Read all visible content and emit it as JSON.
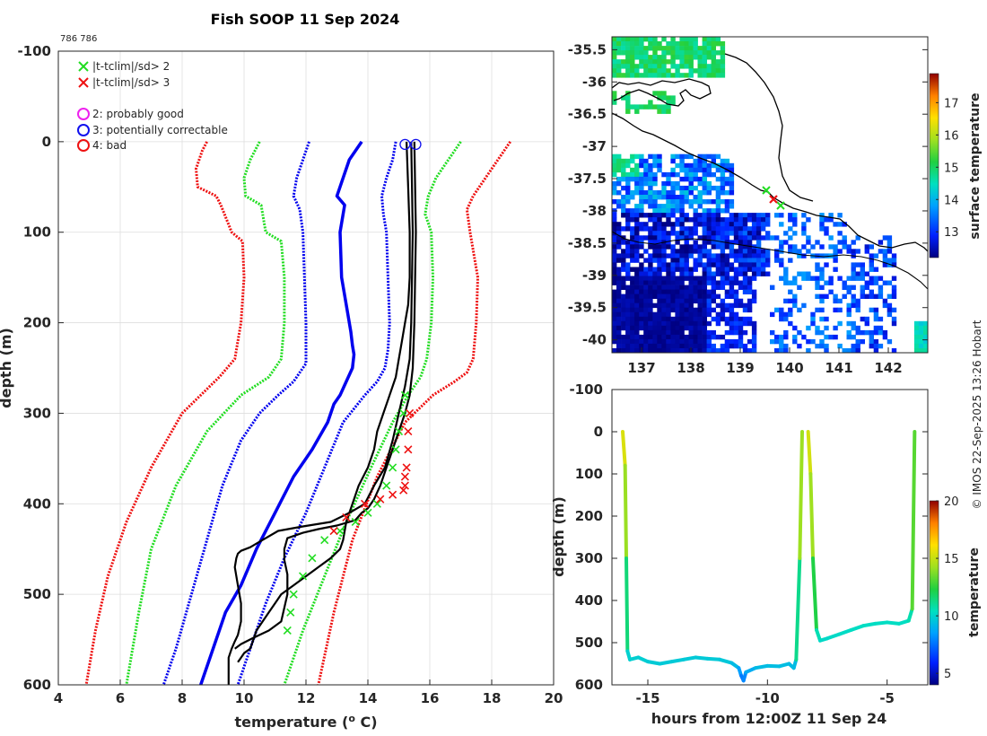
{
  "figure": {
    "title": "Fish SOOP 11 Sep 2024",
    "id_text": "786 786",
    "credit": "© IMOS 22-Sep-2025 13:26 Hobart"
  },
  "chart_data": [
    {
      "type": "line",
      "panel": "profile",
      "xlabel": "temperature (° C)",
      "xlabel_main": "temperature (",
      "xlabel_super": "o",
      "xlabel_tail": " C)",
      "ylabel": "depth (m)",
      "xlim": [
        4,
        20
      ],
      "ylim": [
        -100,
        600
      ],
      "y_reversed": true,
      "grid": true,
      "xticks": [
        4,
        6,
        8,
        10,
        12,
        14,
        16,
        18,
        20
      ],
      "yticks": [
        -100,
        0,
        100,
        200,
        300,
        400,
        500,
        600
      ],
      "legend": {
        "position": "top-left",
        "entries": [
          {
            "symbol": "x",
            "color": "#22dd22",
            "label": "|t-tclim|/sd> 2"
          },
          {
            "symbol": "x",
            "color": "#ee1111",
            "label": "|t-tclim|/sd> 3"
          },
          {
            "symbol": "o",
            "color": "#ee22ee",
            "label": "2: probably good"
          },
          {
            "symbol": "o",
            "color": "#1111ee",
            "label": "3: potentially correctable"
          },
          {
            "symbol": "o",
            "color": "#ee1111",
            "label": "4: bad"
          }
        ]
      },
      "series": [
        {
          "name": "climatology mean",
          "color": "#0000ee",
          "style": "solid",
          "x": [
            13.8,
            13.4,
            13.2,
            13.0,
            13.25,
            13.1,
            13.15,
            13.35,
            13.45,
            13.5,
            13.55,
            13.5,
            13.3,
            13.1,
            12.9,
            12.7,
            12.2,
            11.6,
            11.0,
            10.4,
            9.9,
            9.4,
            9.0,
            8.6
          ],
          "y": [
            0,
            20,
            40,
            60,
            70,
            100,
            150,
            190,
            210,
            225,
            235,
            250,
            265,
            280,
            290,
            310,
            340,
            370,
            410,
            450,
            490,
            520,
            560,
            600
          ]
        },
        {
          "name": "mean - 1 sd",
          "color": "#0000ee",
          "style": "dotted",
          "x": [
            12.1,
            11.9,
            11.7,
            11.6,
            11.8,
            11.9,
            11.95,
            12.0,
            12.0,
            12.0,
            11.8,
            11.6,
            11.1,
            10.5,
            9.9,
            9.3,
            8.8,
            8.3,
            7.8,
            7.4
          ],
          "y": [
            0,
            20,
            40,
            60,
            75,
            100,
            150,
            200,
            230,
            245,
            255,
            265,
            280,
            300,
            330,
            380,
            440,
            500,
            560,
            600
          ]
        },
        {
          "name": "mean + 1 sd",
          "color": "#0000ee",
          "style": "dotted",
          "x": [
            14.9,
            14.8,
            14.6,
            14.45,
            14.5,
            14.6,
            14.65,
            14.7,
            14.65,
            14.55,
            14.3,
            13.9,
            13.2,
            12.6,
            12.0,
            11.3,
            10.7,
            10.2,
            9.8
          ],
          "y": [
            0,
            20,
            40,
            60,
            80,
            100,
            150,
            200,
            230,
            250,
            265,
            280,
            310,
            360,
            410,
            460,
            510,
            560,
            600
          ]
        },
        {
          "name": "mean - 2 sd",
          "color": "#22dd22",
          "style": "dotted",
          "x": [
            10.5,
            10.2,
            10.0,
            10.05,
            10.55,
            10.7,
            11.2,
            11.3,
            11.3,
            11.2,
            10.8,
            9.9,
            8.8,
            7.8,
            7.0,
            6.6,
            6.2
          ],
          "y": [
            0,
            20,
            40,
            60,
            70,
            100,
            110,
            150,
            200,
            240,
            260,
            280,
            320,
            380,
            450,
            520,
            600
          ]
        },
        {
          "name": "mean + 2 sd",
          "color": "#22dd22",
          "style": "dotted",
          "x": [
            17.0,
            16.6,
            16.2,
            15.95,
            15.85,
            16.05,
            16.1,
            16.05,
            15.9,
            15.7,
            15.3,
            14.8,
            14.1,
            13.3,
            12.6,
            11.9,
            11.3
          ],
          "y": [
            0,
            20,
            40,
            60,
            80,
            100,
            150,
            200,
            240,
            260,
            280,
            310,
            360,
            420,
            480,
            540,
            600
          ]
        },
        {
          "name": "mean - 3 sd",
          "color": "#ee1111",
          "style": "dotted",
          "x": [
            8.8,
            8.65,
            8.45,
            8.5,
            9.1,
            9.25,
            9.6,
            9.95,
            10.0,
            9.9,
            9.7,
            9.2,
            8.0,
            7.0,
            6.2,
            5.6,
            5.2,
            4.9
          ],
          "y": [
            0,
            10,
            30,
            50,
            60,
            70,
            100,
            110,
            150,
            200,
            240,
            260,
            300,
            360,
            420,
            480,
            540,
            600
          ]
        },
        {
          "name": "mean + 3 sd",
          "color": "#ee1111",
          "style": "dotted",
          "x": [
            18.6,
            18.2,
            17.8,
            17.4,
            17.2,
            17.3,
            17.55,
            17.5,
            17.4,
            17.2,
            16.8,
            16.1,
            15.2,
            14.3,
            13.5,
            12.9,
            12.4
          ],
          "y": [
            0,
            20,
            40,
            60,
            75,
            100,
            150,
            200,
            240,
            255,
            265,
            280,
            310,
            370,
            440,
            520,
            600
          ]
        },
        {
          "name": "profile cast 1",
          "color": "#000000",
          "style": "solid",
          "x": [
            15.25,
            15.3,
            15.35,
            15.35,
            15.3,
            15.2,
            15.1,
            15.0,
            14.9,
            14.7,
            14.5,
            14.3,
            14.2,
            14.0,
            13.7,
            13.5,
            13.3,
            13.2,
            13.1,
            12.8,
            12.4,
            12.0,
            11.6,
            11.2,
            11.0,
            10.8,
            10.6,
            10.4,
            10.3,
            10.2,
            10.0,
            9.9,
            9.8
          ],
          "y": [
            0,
            50,
            100,
            150,
            180,
            200,
            220,
            240,
            260,
            280,
            300,
            320,
            340,
            360,
            380,
            400,
            420,
            440,
            450,
            460,
            470,
            480,
            490,
            500,
            510,
            520,
            530,
            540,
            550,
            560,
            565,
            570,
            575
          ]
        },
        {
          "name": "profile cast 2",
          "color": "#000000",
          "style": "solid",
          "x": [
            15.5,
            15.55,
            15.5,
            15.45,
            15.35,
            15.2,
            15.0,
            14.8,
            14.6,
            14.4,
            14.2,
            14.0,
            13.8,
            13.6,
            13.4,
            13.0,
            12.4,
            11.9,
            11.4,
            11.3,
            11.3,
            11.4,
            11.4,
            11.2,
            10.8,
            10.3,
            9.9,
            9.7
          ],
          "y": [
            0,
            100,
            200,
            250,
            280,
            300,
            320,
            340,
            360,
            380,
            395,
            405,
            410,
            418,
            420,
            424,
            428,
            432,
            438,
            450,
            462,
            478,
            500,
            530,
            540,
            548,
            555,
            560
          ]
        },
        {
          "name": "profile cast 3",
          "color": "#000000",
          "style": "solid",
          "x": [
            15.4,
            15.45,
            15.4,
            15.35,
            15.2,
            15.0,
            14.8,
            14.55,
            14.2,
            13.9,
            13.4,
            12.8,
            11.9,
            11.1,
            10.6,
            10.2,
            9.9,
            9.8,
            9.75,
            9.7,
            9.8,
            9.9,
            9.9,
            9.8,
            9.7,
            9.6,
            9.5,
            9.5,
            9.5
          ],
          "y": [
            0,
            100,
            200,
            240,
            270,
            300,
            330,
            360,
            380,
            400,
            410,
            420,
            425,
            430,
            440,
            448,
            452,
            455,
            460,
            470,
            490,
            510,
            530,
            545,
            552,
            560,
            570,
            590,
            600
          ]
        },
        {
          "name": "flagged 2 sd",
          "color": "#22dd22",
          "style": "markers-x",
          "x": [
            15.2,
            15.15,
            15.0,
            14.9,
            14.8,
            14.6,
            14.3,
            14.0,
            13.6,
            13.1,
            12.6,
            12.2,
            11.9,
            11.6,
            11.5,
            11.4
          ],
          "y": [
            280,
            300,
            320,
            340,
            360,
            380,
            400,
            410,
            420,
            430,
            440,
            460,
            480,
            500,
            520,
            540
          ]
        },
        {
          "name": "flagged 3 sd",
          "color": "#ee1111",
          "style": "markers-x",
          "x": [
            15.35,
            15.3,
            15.3,
            15.25,
            15.2,
            15.2,
            15.15,
            14.8,
            14.4,
            13.9,
            13.3,
            12.9
          ],
          "y": [
            300,
            320,
            340,
            360,
            370,
            380,
            385,
            390,
            395,
            400,
            415,
            430
          ]
        }
      ],
      "circle_markers": {
        "color": "#1111ee",
        "x": [
          15.2,
          15.55
        ],
        "y": [
          3,
          3
        ]
      }
    },
    {
      "type": "heatmap",
      "panel": "map",
      "xlim": [
        136.4,
        142.8
      ],
      "ylim": [
        -40.2,
        -35.3
      ],
      "xticks": [
        137,
        138,
        139,
        140,
        141,
        142
      ],
      "yticks": [
        -35.5,
        -36,
        -36.5,
        -37,
        -37.5,
        -38,
        -38.5,
        -39,
        -39.5,
        -40
      ],
      "colorbar": {
        "label": "surface temperature",
        "range": [
          12.2,
          17.9
        ],
        "ticks": [
          13,
          14,
          15,
          16,
          17
        ]
      },
      "markers": [
        {
          "symbol": "x",
          "color": "#22dd22",
          "lon": 139.6,
          "lat": -37.72
        },
        {
          "symbol": "x",
          "color": "#22dd22",
          "lon": 139.78,
          "lat": -37.95
        },
        {
          "symbol": "x",
          "color": "#ee1111",
          "lon": 139.7,
          "lat": -37.86
        }
      ]
    },
    {
      "type": "line",
      "panel": "time-depth",
      "xlabel": "hours from 12:00Z 11 Sep 24",
      "ylabel": "depth (m)",
      "xlim": [
        -16.5,
        -3.3
      ],
      "ylim": [
        -100,
        600
      ],
      "y_reversed": true,
      "xticks": [
        -15,
        -10,
        -5
      ],
      "yticks": [
        -100,
        0,
        100,
        200,
        300,
        400,
        500,
        600
      ],
      "colorbar": {
        "label": "temperature",
        "range": [
          4,
          20
        ],
        "ticks": [
          5,
          10,
          15,
          20
        ]
      },
      "series": [
        {
          "name": "cast 1",
          "x": [
            -16.05,
            -15.95,
            -15.9,
            -15.85,
            -15.75,
            -15.4,
            -15.0,
            -14.5,
            -14.0,
            -13.5,
            -13.0,
            -12.5,
            -12.0,
            -11.5,
            -11.2,
            -11.1,
            -11.0,
            -10.9,
            -10.5,
            -10.0,
            -9.5,
            -9.1,
            -8.9,
            -8.8,
            -8.65,
            -8.55
          ],
          "y": [
            0,
            80,
            300,
            520,
            540,
            535,
            545,
            550,
            545,
            540,
            535,
            538,
            540,
            548,
            560,
            578,
            590,
            570,
            560,
            555,
            556,
            550,
            560,
            540,
            300,
            0
          ]
        },
        {
          "name": "cast 2",
          "x": [
            -8.3,
            -8.2,
            -8.1,
            -7.95,
            -7.8,
            -7.5,
            -7.0,
            -6.5,
            -6.0,
            -5.5,
            -5.0,
            -4.5,
            -4.1,
            -3.95,
            -3.85
          ],
          "y": [
            0,
            100,
            300,
            470,
            495,
            490,
            480,
            470,
            460,
            455,
            452,
            455,
            448,
            420,
            0
          ]
        },
        {
          "name": "cast 1 temperature",
          "t": [
            15.5,
            15.3,
            13.0,
            10.0,
            9.9,
            9.9,
            9.8,
            9.7,
            9.7,
            9.7,
            9.7,
            9.7,
            9.7,
            9.6,
            9.0,
            8.0,
            7.5,
            8.5,
            9.2,
            9.4,
            9.3,
            9.4,
            9.2,
            9.4,
            13.0,
            15.4
          ]
        },
        {
          "name": "cast 2 temperature",
          "t": [
            15.5,
            15.0,
            13.5,
            11.0,
            10.2,
            10.2,
            10.2,
            10.3,
            10.3,
            10.3,
            10.3,
            10.3,
            10.3,
            11.0,
            15.3
          ]
        }
      ]
    }
  ]
}
